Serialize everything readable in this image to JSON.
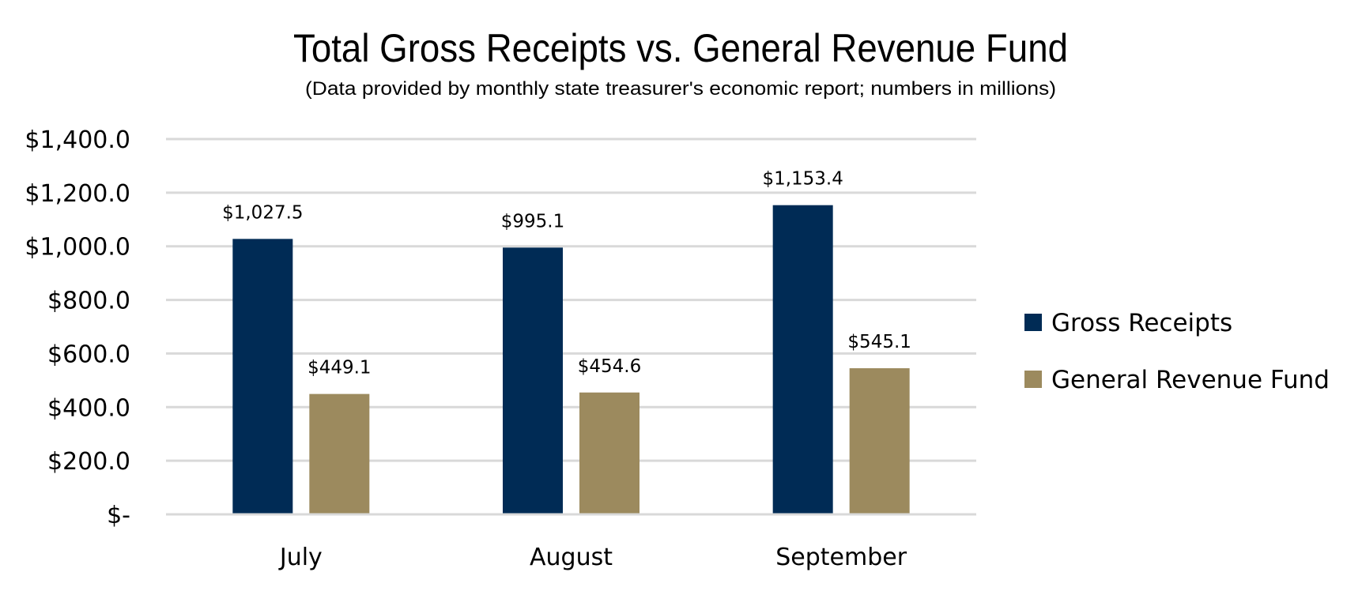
{
  "chart_data": {
    "type": "bar",
    "title": "Total Gross Receipts vs. General Revenue Fund",
    "subtitle": "(Data provided by monthly state treasurer's economic report; numbers in millions)",
    "xlabel": "",
    "ylabel": "",
    "categories": [
      "July",
      "August",
      "September"
    ],
    "series": [
      {
        "name": "Gross Receipts",
        "color": "#002b55",
        "values": [
          1027.5,
          995.1,
          1153.4
        ],
        "labels": [
          "$1,027.5",
          "$995.1",
          "$1,153.4"
        ]
      },
      {
        "name": "General Revenue Fund",
        "color": "#9c8a5e",
        "values": [
          449.1,
          454.6,
          545.1
        ],
        "labels": [
          "$449.1",
          "$454.6",
          "$545.1"
        ]
      }
    ],
    "ylim": [
      0,
      1400
    ],
    "yticks": [
      0,
      200,
      400,
      600,
      800,
      1000,
      1200,
      1400
    ],
    "ytick_labels": [
      "$-",
      "$200.0",
      "$400.0",
      "$600.0",
      "$800.0",
      "$1,000.0",
      "$1,200.0",
      "$1,400.0"
    ],
    "grid": true,
    "legend_position": "right"
  }
}
